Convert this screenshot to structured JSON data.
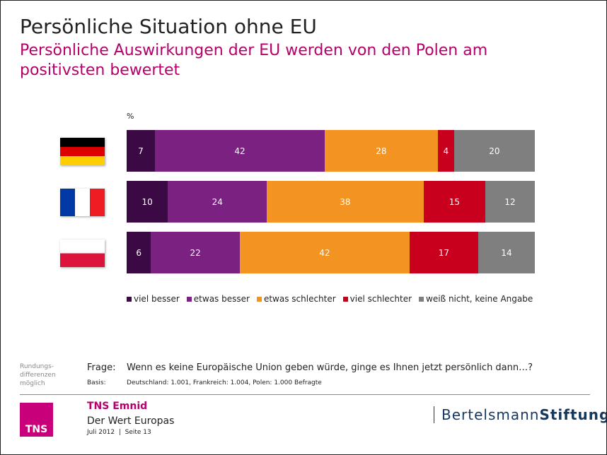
{
  "title": "Persönliche Situation ohne EU",
  "subtitle": "Persönliche Auswirkungen der EU werden von den Polen am positivsten bewertet",
  "chart_data": {
    "type": "bar",
    "orientation": "horizontal-stacked-100",
    "unit_label": "%",
    "categories": [
      "Deutschland",
      "Frankreich",
      "Polen"
    ],
    "category_icons": [
      "flag-germany",
      "flag-france",
      "flag-poland"
    ],
    "series": [
      {
        "name": "viel besser",
        "color": "#3b0a45",
        "values": [
          7,
          10,
          6
        ]
      },
      {
        "name": "etwas besser",
        "color": "#7a2182",
        "values": [
          42,
          24,
          22
        ]
      },
      {
        "name": "etwas schlechter",
        "color": "#f39322",
        "values": [
          28,
          38,
          42
        ]
      },
      {
        "name": "viel schlechter",
        "color": "#c8001e",
        "values": [
          4,
          15,
          17
        ]
      },
      {
        "name": "weiß nicht, keine Angabe",
        "color": "#7f7f7f",
        "values": [
          20,
          12,
          14
        ]
      }
    ],
    "legend_position": "bottom",
    "grid": false
  },
  "footer": {
    "note": "Rundungs-differenzen möglich",
    "frage_label": "Frage:",
    "frage": "Wenn es keine Europäische Union geben würde, ginge es Ihnen jetzt persönlich dann…?",
    "basis_label": "Basis:",
    "basis": "Deutschland: 1.001, Frankreich: 1.004, Polen: 1.000 Befragte",
    "logo_text": "TNS",
    "company": "TNS Emnid",
    "study": "Der Wert Europas",
    "date_page": "Juli 2012  |  Seite 13",
    "partner_a": "Bertelsmann",
    "partner_b": "Stiftung"
  }
}
